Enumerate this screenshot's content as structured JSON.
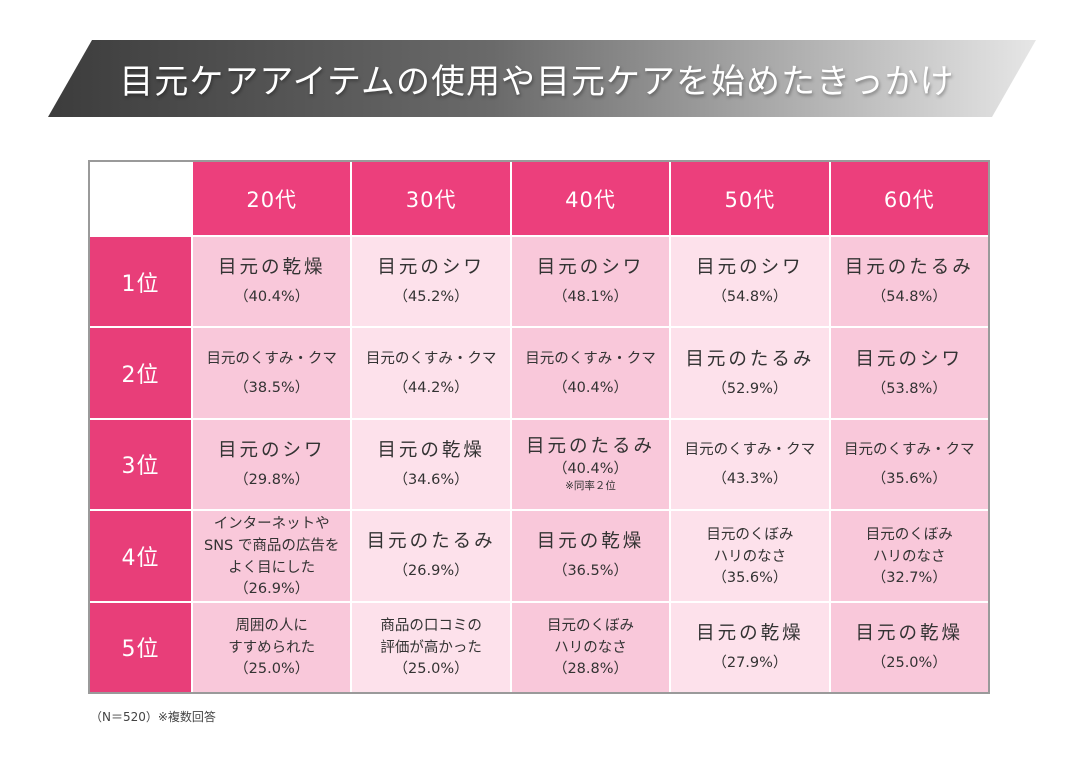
{
  "title": "目元ケアアイテムの使用や目元ケアを始めたきっかけ",
  "columns": [
    "20代",
    "30代",
    "40代",
    "50代",
    "60代"
  ],
  "rows": [
    {
      "rank": "1位",
      "cells": [
        {
          "lines": [
            "目元の乾燥"
          ],
          "pct": "（40.4%）"
        },
        {
          "lines": [
            "目元のシワ"
          ],
          "pct": "（45.2%）"
        },
        {
          "lines": [
            "目元のシワ"
          ],
          "pct": "（48.1%）"
        },
        {
          "lines": [
            "目元のシワ"
          ],
          "pct": "（54.8%）"
        },
        {
          "lines": [
            "目元のたるみ"
          ],
          "pct": "（54.8%）"
        }
      ]
    },
    {
      "rank": "2位",
      "cells": [
        {
          "lines": [
            "目元のくすみ・クマ"
          ],
          "pct": "（38.5%）"
        },
        {
          "lines": [
            "目元のくすみ・クマ"
          ],
          "pct": "（44.2%）"
        },
        {
          "lines": [
            "目元のくすみ・クマ"
          ],
          "pct": "（40.4%）"
        },
        {
          "lines": [
            "目元のたるみ"
          ],
          "pct": "（52.9%）"
        },
        {
          "lines": [
            "目元のシワ"
          ],
          "pct": "（53.8%）"
        }
      ]
    },
    {
      "rank": "3位",
      "cells": [
        {
          "lines": [
            "目元のシワ"
          ],
          "pct": "（29.8%）"
        },
        {
          "lines": [
            "目元の乾燥"
          ],
          "pct": "（34.6%）"
        },
        {
          "lines": [
            "目元のたるみ"
          ],
          "pct": "（40.4%）",
          "note": "※同率２位"
        },
        {
          "lines": [
            "目元のくすみ・クマ"
          ],
          "pct": "（43.3%）"
        },
        {
          "lines": [
            "目元のくすみ・クマ"
          ],
          "pct": "（35.6%）"
        }
      ]
    },
    {
      "rank": "4位",
      "cells": [
        {
          "lines": [
            "インターネットや",
            "SNS で商品の広告を",
            "よく目にした"
          ],
          "pct": "（26.9%）"
        },
        {
          "lines": [
            "目元のたるみ"
          ],
          "pct": "（26.9%）"
        },
        {
          "lines": [
            "目元の乾燥"
          ],
          "pct": "（36.5%）"
        },
        {
          "lines": [
            "目元のくぼみ",
            "ハリのなさ"
          ],
          "pct": "（35.6%）"
        },
        {
          "lines": [
            "目元のくぼみ",
            "ハリのなさ"
          ],
          "pct": "（32.7%）"
        }
      ]
    },
    {
      "rank": "5位",
      "cells": [
        {
          "lines": [
            "周囲の人に",
            "すすめられた"
          ],
          "pct": "（25.0%）"
        },
        {
          "lines": [
            "商品の口コミの",
            "評価が高かった"
          ],
          "pct": "（25.0%）"
        },
        {
          "lines": [
            "目元のくぼみ",
            "ハリのなさ"
          ],
          "pct": "（28.8%）"
        },
        {
          "lines": [
            "目元の乾燥"
          ],
          "pct": "（27.9%）"
        },
        {
          "lines": [
            "目元の乾燥"
          ],
          "pct": "（25.0%）"
        }
      ]
    }
  ],
  "footnote": "（N＝520）※複数回答",
  "colors": {
    "header_pink": "#ec3f7c",
    "cell_pink_dark": "#f9c8da",
    "cell_pink_light": "#fde1eb",
    "banner_dark": "#3c3c3c",
    "banner_light": "#e6e6e6"
  }
}
